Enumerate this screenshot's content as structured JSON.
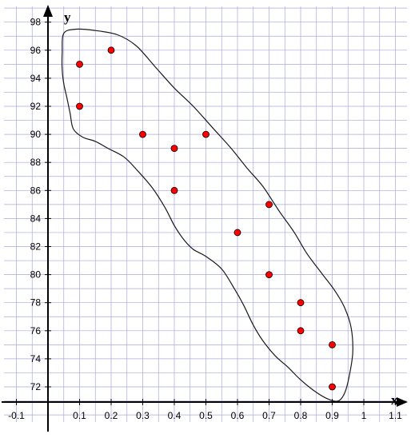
{
  "chart_data": {
    "type": "scatter",
    "title": "",
    "xlabel": "x",
    "ylabel": "y",
    "xlim": [
      -0.15,
      1.1
    ],
    "ylim": [
      70.5,
      98.8
    ],
    "grid": true,
    "x_ticks": [
      "-0.1",
      "0.1",
      "0.2",
      "0.3",
      "0.4",
      "0.5",
      "0.6",
      "0.7",
      "0.8",
      "0.9",
      "1",
      "1.1"
    ],
    "x_tick_values": [
      -0.1,
      0.1,
      0.2,
      0.3,
      0.4,
      0.5,
      0.6,
      0.7,
      0.8,
      0.9,
      1.0,
      1.1
    ],
    "y_ticks": [
      "72",
      "74",
      "76",
      "78",
      "80",
      "82",
      "84",
      "86",
      "88",
      "90",
      "92",
      "94",
      "96",
      "98"
    ],
    "y_tick_values": [
      72,
      74,
      76,
      78,
      80,
      82,
      84,
      86,
      88,
      90,
      92,
      94,
      96,
      98
    ],
    "points": [
      {
        "x": 0.1,
        "y": 95
      },
      {
        "x": 0.1,
        "y": 92
      },
      {
        "x": 0.2,
        "y": 96
      },
      {
        "x": 0.3,
        "y": 90
      },
      {
        "x": 0.4,
        "y": 89
      },
      {
        "x": 0.4,
        "y": 86
      },
      {
        "x": 0.5,
        "y": 90
      },
      {
        "x": 0.6,
        "y": 83
      },
      {
        "x": 0.7,
        "y": 85
      },
      {
        "x": 0.7,
        "y": 80
      },
      {
        "x": 0.8,
        "y": 78
      },
      {
        "x": 0.8,
        "y": 76
      },
      {
        "x": 0.9,
        "y": 75
      },
      {
        "x": 0.9,
        "y": 72
      }
    ],
    "enclosing_outline": [
      {
        "x": 0.05,
        "y": 97.2
      },
      {
        "x": 0.09,
        "y": 97.5
      },
      {
        "x": 0.15,
        "y": 97.4
      },
      {
        "x": 0.22,
        "y": 97.1
      },
      {
        "x": 0.28,
        "y": 96.3
      },
      {
        "x": 0.34,
        "y": 94.8
      },
      {
        "x": 0.4,
        "y": 93.3
      },
      {
        "x": 0.46,
        "y": 92.0
      },
      {
        "x": 0.52,
        "y": 90.5
      },
      {
        "x": 0.58,
        "y": 89.0
      },
      {
        "x": 0.63,
        "y": 87.6
      },
      {
        "x": 0.68,
        "y": 86.3
      },
      {
        "x": 0.73,
        "y": 84.6
      },
      {
        "x": 0.78,
        "y": 83.0
      },
      {
        "x": 0.82,
        "y": 81.5
      },
      {
        "x": 0.87,
        "y": 80.0
      },
      {
        "x": 0.91,
        "y": 78.8
      },
      {
        "x": 0.94,
        "y": 77.6
      },
      {
        "x": 0.96,
        "y": 76.2
      },
      {
        "x": 0.965,
        "y": 74.5
      },
      {
        "x": 0.955,
        "y": 72.9
      },
      {
        "x": 0.94,
        "y": 71.6
      },
      {
        "x": 0.92,
        "y": 71.0
      },
      {
        "x": 0.89,
        "y": 71.1
      },
      {
        "x": 0.85,
        "y": 71.6
      },
      {
        "x": 0.8,
        "y": 72.5
      },
      {
        "x": 0.76,
        "y": 73.4
      },
      {
        "x": 0.72,
        "y": 74.2
      },
      {
        "x": 0.68,
        "y": 75.3
      },
      {
        "x": 0.65,
        "y": 76.4
      },
      {
        "x": 0.62,
        "y": 77.8
      },
      {
        "x": 0.59,
        "y": 79.0
      },
      {
        "x": 0.55,
        "y": 80.4
      },
      {
        "x": 0.5,
        "y": 81.3
      },
      {
        "x": 0.46,
        "y": 81.8
      },
      {
        "x": 0.43,
        "y": 82.5
      },
      {
        "x": 0.4,
        "y": 83.5
      },
      {
        "x": 0.37,
        "y": 84.8
      },
      {
        "x": 0.33,
        "y": 86.2
      },
      {
        "x": 0.28,
        "y": 87.5
      },
      {
        "x": 0.24,
        "y": 88.4
      },
      {
        "x": 0.19,
        "y": 89.0
      },
      {
        "x": 0.15,
        "y": 89.5
      },
      {
        "x": 0.11,
        "y": 89.8
      },
      {
        "x": 0.08,
        "y": 90.4
      },
      {
        "x": 0.07,
        "y": 91.5
      },
      {
        "x": 0.06,
        "y": 92.6
      },
      {
        "x": 0.05,
        "y": 93.6
      },
      {
        "x": 0.045,
        "y": 94.6
      },
      {
        "x": 0.045,
        "y": 95.8
      }
    ],
    "colors": {
      "point_fill": "#ff0000",
      "point_stroke": "#000000",
      "grid": "#a8a8dc",
      "axis": "#000000",
      "outline": "#1a1a1a"
    }
  }
}
